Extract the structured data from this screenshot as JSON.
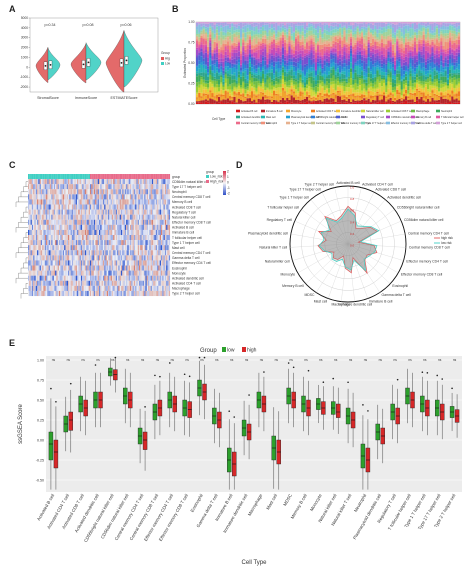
{
  "panels": {
    "a": "A",
    "b": "B",
    "c": "C",
    "d": "D",
    "e": "E"
  },
  "chart_data": [
    {
      "type": "violin",
      "id": "A",
      "categories": [
        "StromalScore",
        "ImmuneScore",
        "ESTIMATEScore"
      ],
      "pvalues": [
        "p=0.34",
        "p=0.08",
        "p=0.06"
      ],
      "ylabel": "",
      "yticks": [
        "-2000",
        "-1000",
        "0",
        "1000",
        "2000",
        "3000",
        "4000",
        "5000"
      ],
      "ylim": [
        -2500,
        5000
      ],
      "legend": {
        "title": "Group",
        "items": [
          "High_risk",
          "Low_risk"
        ],
        "placement": "right"
      },
      "series": [
        {
          "name": "High_risk",
          "color": "#e05a5a",
          "medians": [
            150,
            300,
            450
          ],
          "spread": [
            1900,
            2100,
            3300
          ]
        },
        {
          "name": "Low_risk",
          "color": "#3fcfc3",
          "medians": [
            250,
            500,
            700
          ],
          "spread": [
            1700,
            2000,
            3000
          ]
        }
      ]
    },
    {
      "type": "stacked-bar",
      "id": "B",
      "ylabel": "Estimated Proportion",
      "ylim": [
        0,
        1
      ],
      "yticks": [
        "0.00",
        "0.25",
        "0.50",
        "0.75",
        "1.00"
      ],
      "legend_title": "Cell Type",
      "legend_items": [
        "Activated B cell",
        "Immature B cell",
        "Monocyte",
        "Activated CD4 T cell",
        "Immature dendritic cell",
        "Natural killer cell",
        "Activated CD8 T cell",
        "Macrophage",
        "Neutrophil",
        "Activated dendritic cell",
        "Mast cell",
        "Plasmacytoid dendritic cell",
        "CD56bright natural killer cell",
        "MDSC",
        "Regulatory T cell",
        "CD56dim natural killer cell",
        "Memory B cell",
        "T follicular helper cell",
        "Central memory CD4 T cell",
        "Eosinophil",
        "Type 1 T helper cell",
        "Central memory CD8 T cell",
        "Effector memory CD4 T cell",
        "Type 17 T helper cell",
        "Effector memory CD8 T cell",
        "Gamma delta T cell",
        "Type 2 T helper cell"
      ],
      "colors": [
        "#d7191c",
        "#b4262b",
        "#f2a52c",
        "#ee7f22",
        "#f4c23b",
        "#cfd83a",
        "#9acd32",
        "#6ebd45",
        "#3caa5c",
        "#2ca58d",
        "#26b6b3",
        "#24a0d0",
        "#2f7fd6",
        "#4f5fd1",
        "#7a4fcf",
        "#a24bc8",
        "#c84bb8",
        "#e05aa3",
        "#ec6b8a",
        "#f0907a",
        "#e6b18f",
        "#c4c48a",
        "#9fd39a",
        "#7fd3c0",
        "#86bde0",
        "#a9a3e3",
        "#d3a0d8"
      ],
      "n_samples": 120
    },
    {
      "type": "heatmap",
      "id": "C",
      "legend": {
        "title": "group",
        "items": [
          "Low_risk",
          "High_risk"
        ],
        "colors": [
          "#3fcfc3",
          "#e86b8a"
        ],
        "scale": [
          "2",
          "1",
          "0",
          "-1",
          "-2"
        ]
      },
      "rows": [
        "group",
        "CD56dim natural killer cell",
        "Type 17 T helper cell",
        "Neutrophil",
        "Central memory CD8 T cell",
        "Memory B cell",
        "Activated CD8 T cell",
        "Regulatory T cell",
        "Natural killer cell",
        "Effector memory CD8 T cell",
        "Activated B cell",
        "Immature B cell",
        "T follicular helper cell",
        "Type 1 T helper cell",
        "Mast cell",
        "Central memory CD4 T cell",
        "Gamma delta T cell",
        "Effector memory CD4 T cell",
        "Eosinophil",
        "Monocyte",
        "Activated dendritic cell",
        "Activated CD4 T cell",
        "Macrophage",
        "Type 2 T helper cell"
      ],
      "n_cols": 110
    },
    {
      "type": "radar",
      "id": "D",
      "legend": {
        "items": [
          "high risk",
          "low risk"
        ],
        "colors": [
          "#e05a5a",
          "#3fcfc3"
        ],
        "placement": "right"
      },
      "axes": [
        "Activated B cell",
        "Activated CD4 T cell",
        "Activated CD8 T cell",
        "Activated dendritic cell",
        "CD56bright natural killer cell",
        "CD56dim natural killer cell",
        "Central memory CD4 T cell",
        "Central memory CD8 T cell",
        "Effector memory CD4 T cell",
        "Effector memory CD8 T cell",
        "Eosinophil",
        "Gamma delta T cell",
        "Immature B cell",
        "Immature dendritic cell",
        "Macrophage",
        "Mast cell",
        "MDSC",
        "Memory B cell",
        "Monocyte",
        "Natural killer cell",
        "Natural killer T cell",
        "Plasmacytoid dendritic cell",
        "Regulatory T cell",
        "T follicular helper cell",
        "Type 1 T helper cell",
        "Type 17 T helper cell",
        "Type 2 T helper cell"
      ],
      "rings": [
        "0.0",
        "0.2",
        "0.4",
        "0.6",
        "0.8",
        "1.0"
      ],
      "series": [
        {
          "name": "high risk",
          "values": [
            0.65,
            0.55,
            0.3,
            0.35,
            0.48,
            0.55,
            0.18,
            0.45,
            0.52,
            0.38,
            0.4,
            0.6,
            0.25,
            0.5,
            0.42,
            0.22,
            0.32,
            0.35,
            0.28,
            0.45,
            0.52,
            0.38,
            0.55,
            0.36,
            0.62,
            0.45,
            0.5
          ]
        },
        {
          "name": "low risk",
          "values": [
            0.6,
            0.5,
            0.35,
            0.4,
            0.5,
            0.58,
            0.22,
            0.5,
            0.48,
            0.42,
            0.38,
            0.55,
            0.3,
            0.45,
            0.4,
            0.28,
            0.36,
            0.38,
            0.32,
            0.42,
            0.5,
            0.42,
            0.5,
            0.4,
            0.58,
            0.42,
            0.46
          ]
        }
      ]
    },
    {
      "type": "boxplot",
      "id": "E",
      "title": "Group",
      "legend": {
        "items": [
          "low",
          "high"
        ],
        "colors": [
          "#2ca02c",
          "#d62728"
        ],
        "placement": "top"
      },
      "ylabel": "ssGSEA Score",
      "xlabel": "Cell Type",
      "ylim": [
        -0.65,
        1.05
      ],
      "yticks": [
        "1.00",
        "0.75",
        "0.50",
        "0.25",
        "0.00",
        "-0.25",
        "-0.50"
      ],
      "ytick_values": [
        1.0,
        0.75,
        0.5,
        0.25,
        0.0,
        -0.25,
        -0.5
      ],
      "categories": [
        "Activated B cell",
        "Activated CD4 T cell",
        "Activated CD8 T cell",
        "Activated dendritic cell",
        "CD56bright natural killer cell",
        "CD56dim natural killer cell",
        "Central memory CD4 T cell",
        "Central memory CD8 T cell",
        "Effector memory CD4 T cell",
        "Effector memory CD8 T cell",
        "Eosinophil",
        "Gamma delta T cell",
        "Immature B cell",
        "Immature dendritic cell",
        "Macrophage",
        "Mast cell",
        "MDSC",
        "Memory B cell",
        "Monocyte",
        "Natural killer cell",
        "Natural killer T cell",
        "Neutrophil",
        "Plasmacytoid dendritic cell",
        "Regulatory T cell",
        "T follicular helper cell",
        "Type 1 T helper cell",
        "Type 17 T helper cell",
        "Type 2 T helper cell"
      ],
      "signif": [
        "ns",
        "ns",
        "ns",
        "ns",
        "ns",
        "ns",
        "ns",
        "ns",
        "ns",
        "ns",
        "ns",
        "ns",
        "ns",
        "ns",
        "ns",
        "ns",
        "ns",
        "ns",
        "ns",
        "ns",
        "ns",
        "ns",
        "ns",
        "ns",
        "ns",
        "ns",
        "ns",
        "ns"
      ],
      "series": [
        {
          "name": "low",
          "medians": [
            -0.05,
            0.2,
            0.45,
            0.5,
            0.85,
            0.55,
            0.05,
            0.35,
            0.5,
            0.4,
            0.65,
            0.3,
            -0.25,
            0.15,
            0.5,
            -0.1,
            0.55,
            0.45,
            0.45,
            0.4,
            0.3,
            -0.2,
            0.1,
            0.35,
            0.55,
            0.45,
            0.4,
            0.35
          ],
          "q1": [
            -0.25,
            0.1,
            0.35,
            0.4,
            0.8,
            0.45,
            -0.05,
            0.25,
            0.4,
            0.3,
            0.55,
            0.2,
            -0.4,
            0.05,
            0.4,
            -0.25,
            0.45,
            0.35,
            0.38,
            0.32,
            0.2,
            -0.35,
            0.0,
            0.25,
            0.45,
            0.35,
            0.3,
            0.28
          ],
          "q3": [
            0.1,
            0.3,
            0.55,
            0.6,
            0.9,
            0.65,
            0.15,
            0.45,
            0.6,
            0.5,
            0.75,
            0.4,
            -0.1,
            0.25,
            0.6,
            0.05,
            0.65,
            0.55,
            0.52,
            0.48,
            0.4,
            -0.05,
            0.2,
            0.45,
            0.65,
            0.55,
            0.5,
            0.42
          ]
        },
        {
          "name": "high",
          "medians": [
            -0.15,
            0.25,
            0.4,
            0.5,
            0.82,
            0.5,
            0.0,
            0.4,
            0.45,
            0.38,
            0.6,
            0.25,
            -0.3,
            0.1,
            0.45,
            -0.15,
            0.5,
            0.4,
            0.4,
            0.35,
            0.25,
            -0.25,
            0.05,
            0.3,
            0.5,
            0.4,
            0.35,
            0.3
          ],
          "q1": [
            -0.35,
            0.12,
            0.3,
            0.4,
            0.75,
            0.4,
            -0.12,
            0.3,
            0.35,
            0.28,
            0.5,
            0.15,
            -0.45,
            0.0,
            0.35,
            -0.3,
            0.4,
            0.3,
            0.32,
            0.28,
            0.15,
            -0.4,
            -0.05,
            0.2,
            0.4,
            0.3,
            0.25,
            0.22
          ],
          "q3": [
            0.0,
            0.35,
            0.5,
            0.6,
            0.88,
            0.6,
            0.1,
            0.5,
            0.55,
            0.48,
            0.7,
            0.35,
            -0.15,
            0.2,
            0.55,
            0.0,
            0.6,
            0.5,
            0.48,
            0.45,
            0.35,
            -0.1,
            0.15,
            0.4,
            0.6,
            0.5,
            0.45,
            0.38
          ]
        }
      ]
    }
  ]
}
